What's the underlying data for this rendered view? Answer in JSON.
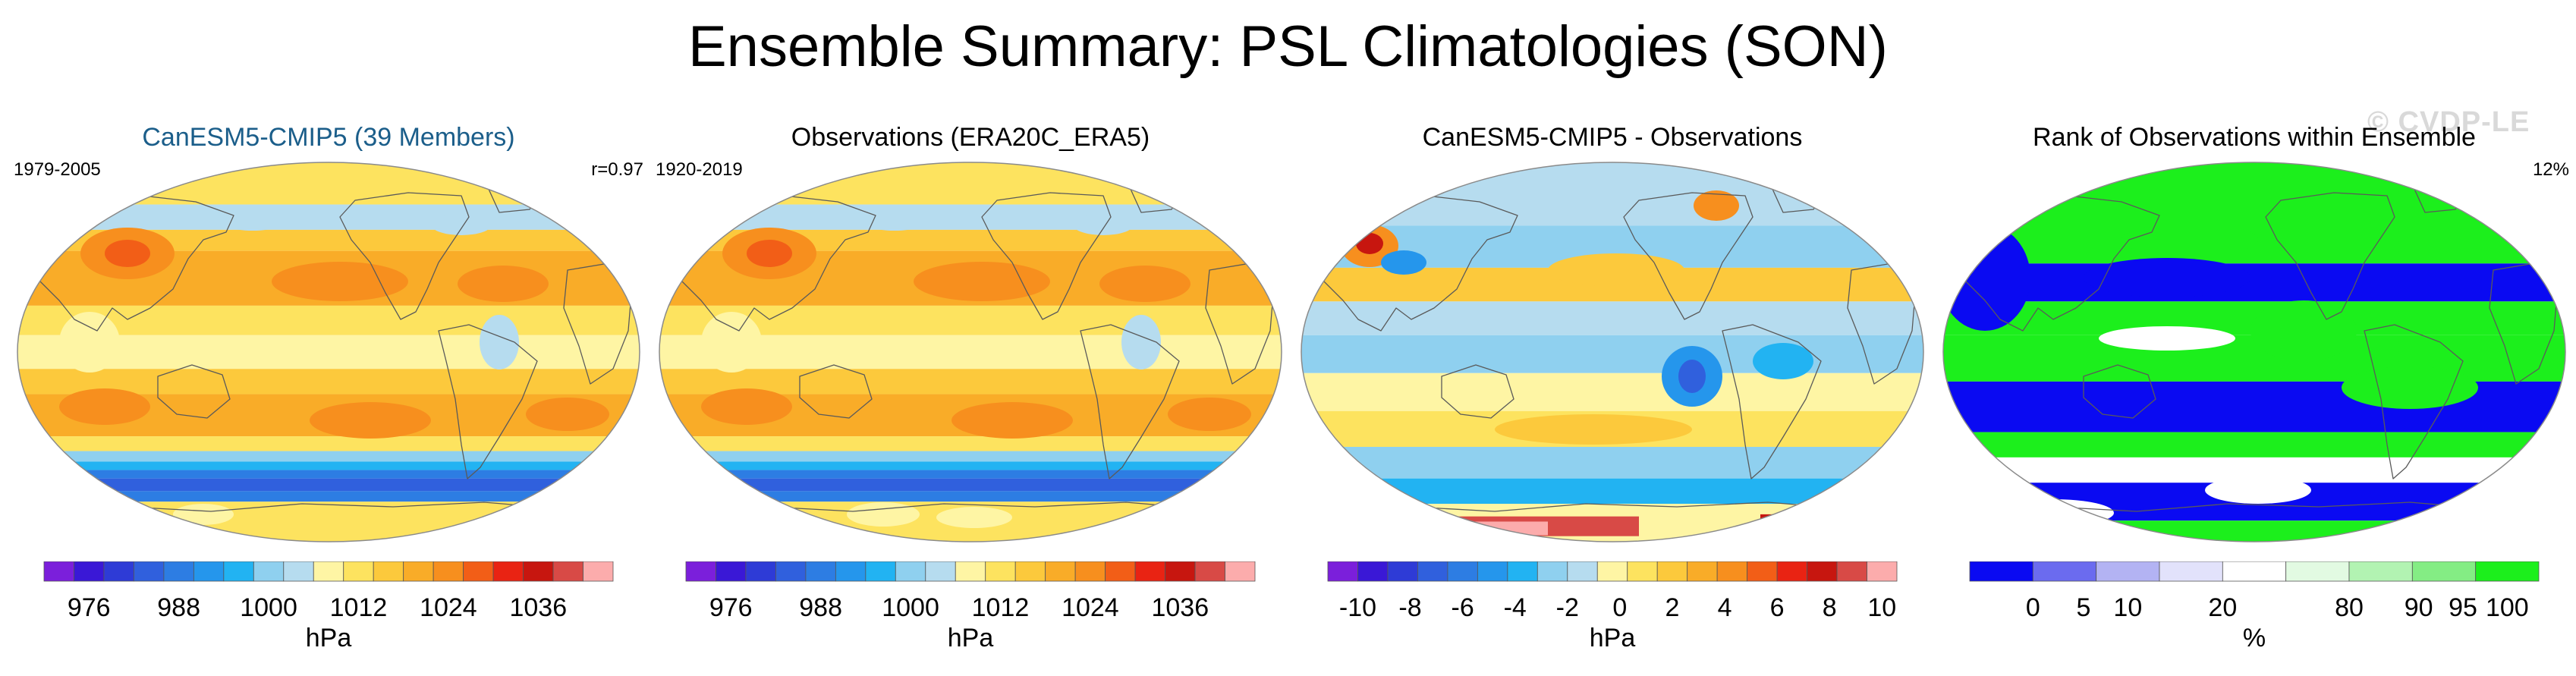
{
  "title": "Ensemble Summary: PSL Climatologies (SON)",
  "watermark": "© CVDP-LE",
  "panels": [
    {
      "title": "CanESM5-CMIP5 (39 Members)",
      "left_label": "1979-2005",
      "right_label": "r=0.97",
      "colors": [
        "#7b1fdb",
        "#3a18d6",
        "#2e3bd6",
        "#3060dd",
        "#2d7de3",
        "#2596ec",
        "#22b3f2",
        "#8fd0ef",
        "#b6dcef",
        "#fef5a4",
        "#fde35f",
        "#fcc93c",
        "#f9ac28",
        "#f78f1e",
        "#f25e17",
        "#e92313",
        "#c7160f",
        "#d84a46",
        "#fcacac"
      ],
      "tick_labels": [
        "976",
        "988",
        "1000",
        "1012",
        "1024",
        "1036"
      ],
      "tick_positions": [
        1.5,
        4.5,
        7.5,
        10.5,
        13.5,
        16.5
      ],
      "unit_label": "hPa",
      "mode": "clim"
    },
    {
      "title": "Observations (ERA20C_ERA5)",
      "left_label": "1920-2019",
      "right_label": "",
      "colors": [
        "#7b1fdb",
        "#3a18d6",
        "#2e3bd6",
        "#3060dd",
        "#2d7de3",
        "#2596ec",
        "#22b3f2",
        "#8fd0ef",
        "#b6dcef",
        "#fef5a4",
        "#fde35f",
        "#fcc93c",
        "#f9ac28",
        "#f78f1e",
        "#f25e17",
        "#e92313",
        "#c7160f",
        "#d84a46",
        "#fcacac"
      ],
      "tick_labels": [
        "976",
        "988",
        "1000",
        "1012",
        "1024",
        "1036"
      ],
      "tick_positions": [
        1.5,
        4.5,
        7.5,
        10.5,
        13.5,
        16.5
      ],
      "unit_label": "hPa",
      "mode": "obs"
    },
    {
      "title": "CanESM5-CMIP5 - Observations",
      "left_label": "",
      "right_label": "",
      "colors": [
        "#7b1fdb",
        "#3a18d6",
        "#2e3bd6",
        "#3060dd",
        "#2d7de3",
        "#2596ec",
        "#22b3f2",
        "#8fd0ef",
        "#b6dcef",
        "#fef5a4",
        "#fde35f",
        "#fcc93c",
        "#f9ac28",
        "#f78f1e",
        "#f25e17",
        "#e92313",
        "#c7160f",
        "#d84a46",
        "#fcacac"
      ],
      "tick_labels": [
        "-10",
        "-8",
        "-6",
        "-4",
        "-2",
        "0",
        "2",
        "4",
        "6",
        "8",
        "10"
      ],
      "tick_positions": [
        1,
        2.75,
        4.5,
        6.25,
        8,
        9.75,
        11.5,
        13.25,
        15,
        16.75,
        18.5
      ],
      "unit_label": "hPa",
      "mode": "diff"
    },
    {
      "title": "Rank of Observations within Ensemble",
      "left_label": "",
      "right_label": "12%",
      "colors": [
        "#0a0af2",
        "#6b6bef",
        "#b3b3f3",
        "#e2e2fb",
        "#ffffff",
        "#e2fae2",
        "#b2f3b2",
        "#84ed84",
        "#1cef1c"
      ],
      "tick_labels": [
        "0",
        "5",
        "10",
        "20",
        "80",
        "90",
        "95",
        "100"
      ],
      "tick_positions": [
        1,
        1.8,
        2.5,
        4.0,
        6.0,
        7.1,
        7.8,
        8.5
      ],
      "unit_label": "%",
      "mode": "rank"
    }
  ],
  "chart_data": [
    {
      "type": "heatmap",
      "title": "CanESM5-CMIP5 (39 Members)",
      "period": "1979-2005",
      "pattern_correlation": 0.97,
      "colorbar_label": "hPa",
      "colorbar_ticks": [
        976,
        988,
        1000,
        1012,
        1024,
        1036
      ],
      "range": [
        970,
        1042
      ]
    },
    {
      "type": "heatmap",
      "title": "Observations (ERA20C_ERA5)",
      "period": "1920-2019",
      "colorbar_label": "hPa",
      "colorbar_ticks": [
        976,
        988,
        1000,
        1012,
        1024,
        1036
      ],
      "range": [
        970,
        1042
      ]
    },
    {
      "type": "heatmap",
      "title": "CanESM5-CMIP5 - Observations",
      "colorbar_label": "hPa",
      "colorbar_ticks": [
        -10,
        -8,
        -6,
        -4,
        -2,
        0,
        2,
        4,
        6,
        8,
        10
      ],
      "range": [
        -11,
        11
      ]
    },
    {
      "type": "heatmap",
      "title": "Rank of Observations within Ensemble",
      "summary": "12%",
      "colorbar_label": "%",
      "colorbar_ticks": [
        0,
        5,
        10,
        20,
        80,
        90,
        95,
        100
      ],
      "range": [
        0,
        100
      ]
    }
  ]
}
